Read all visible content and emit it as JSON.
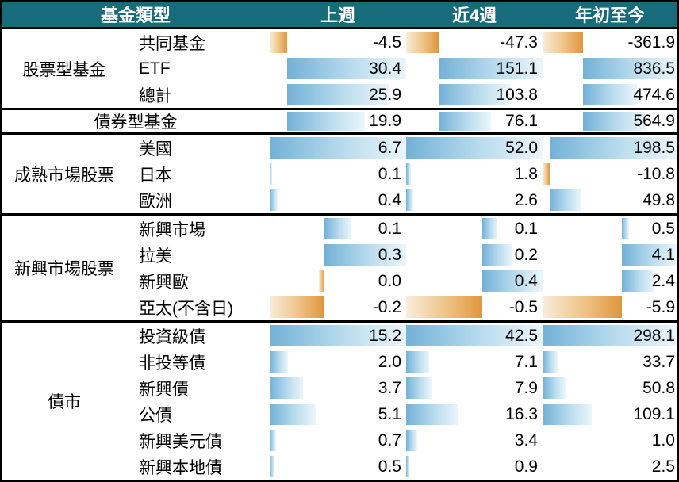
{
  "chart_data": {
    "type": "table",
    "title": "",
    "columns": [
      "基金類型",
      "上週",
      "近4週",
      "年初至今"
    ],
    "unit_note": "",
    "legend_position": "none",
    "grid": false,
    "sections": [
      {
        "group": "股票型基金",
        "merged": false,
        "rows": [
          {
            "label": "共同基金",
            "values": [
              "-4.5",
              "-47.3",
              "-361.9"
            ]
          },
          {
            "label": "ETF",
            "values": [
              "30.4",
              "151.1",
              "836.5"
            ]
          },
          {
            "label": "總計",
            "values": [
              "25.9",
              "103.8",
              "474.6"
            ]
          }
        ],
        "bar_scale_per_column": [
          [
            -4.5,
            30.4
          ],
          [
            -47.3,
            151.1
          ],
          [
            -361.9,
            836.5
          ]
        ]
      },
      {
        "group": "債券型基金",
        "merged": true,
        "rows": [
          {
            "label": "債券型基金",
            "values": [
              "19.9",
              "76.1",
              "564.9"
            ]
          }
        ],
        "bar_scale_per_column": [
          [
            -4.5,
            30.4
          ],
          [
            -47.3,
            151.1
          ],
          [
            -361.9,
            836.5
          ]
        ]
      },
      {
        "group": "成熟市場股票",
        "merged": false,
        "rows": [
          {
            "label": "美國",
            "values": [
              "6.7",
              "52.0",
              "198.5"
            ]
          },
          {
            "label": "日本",
            "values": [
              "0.1",
              "1.8",
              "-10.8"
            ]
          },
          {
            "label": "歐洲",
            "values": [
              "0.4",
              "2.6",
              "49.8"
            ]
          }
        ],
        "bar_scale_per_column": [
          [
            0,
            6.7
          ],
          [
            0,
            52.0
          ],
          [
            -10.8,
            198.5
          ]
        ]
      },
      {
        "group": "新興市場股票",
        "merged": false,
        "rows": [
          {
            "label": "新興市場",
            "values": [
              "0.1",
              "0.1",
              "0.5"
            ]
          },
          {
            "label": "拉美",
            "values": [
              "0.3",
              "0.2",
              "4.1"
            ]
          },
          {
            "label": "新興歐",
            "values": [
              "0.0",
              "0.4",
              "2.4"
            ],
            "bar_values": [
              -0.02,
              0.4,
              2.4
            ]
          },
          {
            "label": "亞太(不含日)",
            "values": [
              "-0.2",
              "-0.5",
              "-5.9"
            ]
          }
        ],
        "bar_scale_per_column": [
          [
            -0.2,
            0.3
          ],
          [
            -0.5,
            0.4
          ],
          [
            -5.9,
            4.1
          ]
        ]
      },
      {
        "group": "債市",
        "merged": false,
        "rows": [
          {
            "label": "投資級債",
            "values": [
              "15.2",
              "42.5",
              "298.1"
            ]
          },
          {
            "label": "非投等債",
            "values": [
              "2.0",
              "7.1",
              "33.7"
            ]
          },
          {
            "label": "新興債",
            "values": [
              "3.7",
              "7.9",
              "50.8"
            ]
          },
          {
            "label": "公債",
            "values": [
              "5.1",
              "16.3",
              "109.1"
            ]
          },
          {
            "label": "新興美元債",
            "values": [
              "0.7",
              "3.4",
              "1.0"
            ]
          },
          {
            "label": "新興本地債",
            "values": [
              "0.5",
              "0.9",
              "2.5"
            ]
          }
        ],
        "bar_scale_per_column": [
          [
            0,
            15.2
          ],
          [
            0,
            42.5
          ],
          [
            0,
            298.1
          ]
        ]
      }
    ],
    "colors": {
      "header_bg": "#186b7a",
      "header_text": "#ffffff",
      "positive_bar": "#73b1d7",
      "negative_bar": "#e0953c",
      "border": "#000000",
      "text": "#000000"
    }
  }
}
